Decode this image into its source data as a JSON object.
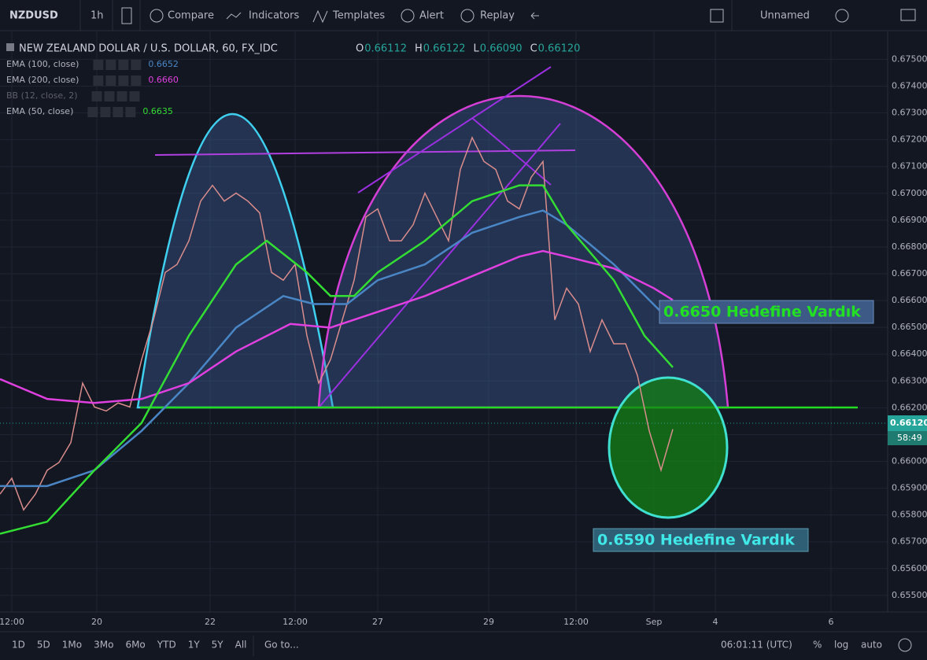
{
  "toolbar": {
    "symbol": "NZDUSD",
    "interval": "1h",
    "items": [
      "Compare",
      "Indicators",
      "Templates",
      "Alert",
      "Replay"
    ],
    "layout_name": "Unnamed"
  },
  "legend": {
    "title": "NEW ZEALAND DOLLAR / U.S. DOLLAR, 60, FX_IDC",
    "ohlc": [
      {
        "label": "O",
        "value": "0.66112"
      },
      {
        "label": "H",
        "value": "0.66122"
      },
      {
        "label": "L",
        "value": "0.66090"
      },
      {
        "label": "C",
        "value": "0.66120"
      }
    ],
    "indicators": [
      {
        "name": "EMA (100, close)",
        "value": "0.6652",
        "color": "#4a86c5"
      },
      {
        "name": "EMA (200, close)",
        "value": "0.6660",
        "color": "#e040e0"
      },
      {
        "name": "BB (12, close, 2)",
        "value": null,
        "color": "#787b86"
      },
      {
        "name": "EMA (50, close)",
        "value": "0.6635",
        "color": "#33dd33"
      }
    ]
  },
  "chart_data": {
    "type": "line",
    "xlim": [
      0,
      376
    ],
    "xticks": [
      {
        "value": 5,
        "label": "12:00"
      },
      {
        "value": 41,
        "label": "20"
      },
      {
        "value": 89,
        "label": "22"
      },
      {
        "value": 125,
        "label": "12:00"
      },
      {
        "value": 160,
        "label": "27"
      },
      {
        "value": 207,
        "label": "29"
      },
      {
        "value": 244,
        "label": "12:00"
      },
      {
        "value": 277,
        "label": "Sep"
      },
      {
        "value": 303,
        "label": "4"
      },
      {
        "value": 352,
        "label": "6"
      }
    ],
    "ylim": [
      0.65438,
      0.67604
    ],
    "yticks": [
      {
        "value": 0.655,
        "label": "0.65500"
      },
      {
        "value": 0.656,
        "label": "0.65600"
      },
      {
        "value": 0.657,
        "label": "0.65700"
      },
      {
        "value": 0.658,
        "label": "0.65800"
      },
      {
        "value": 0.659,
        "label": "0.65900"
      },
      {
        "value": 0.66,
        "label": "0.66000"
      },
      {
        "value": 0.661,
        "label": "0.66100"
      },
      {
        "value": 0.662,
        "label": "0.66200"
      },
      {
        "value": 0.663,
        "label": "0.66300"
      },
      {
        "value": 0.664,
        "label": "0.66400"
      },
      {
        "value": 0.665,
        "label": "0.66500"
      },
      {
        "value": 0.666,
        "label": "0.66600"
      },
      {
        "value": 0.667,
        "label": "0.66700"
      },
      {
        "value": 0.668,
        "label": "0.66800"
      },
      {
        "value": 0.669,
        "label": "0.66900"
      },
      {
        "value": 0.67,
        "label": "0.67000"
      },
      {
        "value": 0.671,
        "label": "0.67100"
      },
      {
        "value": 0.672,
        "label": "0.67200"
      },
      {
        "value": 0.673,
        "label": "0.67300"
      },
      {
        "value": 0.674,
        "label": "0.67400"
      },
      {
        "value": 0.675,
        "label": "0.67500"
      }
    ],
    "grid": true,
    "series": [
      {
        "color": "#d98c8c",
        "x": [
          0,
          5,
          10,
          15,
          20,
          25,
          30,
          35,
          40,
          45,
          50,
          55,
          60,
          65,
          70,
          75,
          80,
          85,
          90,
          95,
          100,
          105,
          110,
          115,
          120,
          125,
          130,
          135,
          140,
          145,
          150,
          155,
          160,
          165,
          170,
          175,
          180,
          185,
          190,
          195,
          200,
          205,
          210,
          215,
          220,
          225,
          230,
          235,
          240,
          245,
          250,
          255,
          260,
          265,
          270,
          275,
          280,
          285
        ],
        "values": [
          0.65878,
          0.65937,
          0.65819,
          0.65878,
          0.65967,
          0.65996,
          0.6607,
          0.66292,
          0.66203,
          0.66188,
          0.66218,
          0.66203,
          0.6638,
          0.66528,
          0.66705,
          0.66735,
          0.66823,
          0.66971,
          0.6703,
          0.66971,
          0.67001,
          0.66971,
          0.66927,
          0.66705,
          0.66676,
          0.66735,
          0.66469,
          0.66292,
          0.6638,
          0.66528,
          0.66676,
          0.66912,
          0.66942,
          0.66823,
          0.66823,
          0.66883,
          0.67001,
          0.66912,
          0.66823,
          0.67089,
          0.67208,
          0.67119,
          0.67089,
          0.66971,
          0.66942,
          0.6706,
          0.67119,
          0.66528,
          0.66646,
          0.66587,
          0.6641,
          0.66528,
          0.66439,
          0.66439,
          0.66321,
          0.66114,
          0.65967,
          0.6612
        ]
      },
      {
        "name": "EMA (100, close)",
        "color": "#4a86c5",
        "x": [
          0,
          20,
          40,
          60,
          80,
          100,
          120,
          133,
          147,
          160,
          180,
          200,
          220,
          230,
          240,
          260,
          280,
          285
        ],
        "values": [
          0.65908,
          0.65908,
          0.65967,
          0.66114,
          0.66292,
          0.66499,
          0.66617,
          0.66587,
          0.66587,
          0.66676,
          0.66735,
          0.66853,
          0.66912,
          0.66936,
          0.66883,
          0.66735,
          0.66558,
          0.66528
        ]
      },
      {
        "name": "EMA (200, close)",
        "color": "#e040e0",
        "x": [
          0,
          20,
          40,
          60,
          80,
          100,
          123,
          140,
          160,
          180,
          200,
          220,
          230,
          240,
          260,
          277,
          285
        ],
        "values": [
          0.66307,
          0.66233,
          0.66218,
          0.66233,
          0.66292,
          0.6641,
          0.66513,
          0.66499,
          0.66558,
          0.66617,
          0.66691,
          0.66764,
          0.66785,
          0.66764,
          0.6672,
          0.66646,
          0.66602
        ]
      },
      {
        "name": "EMA (50, close)",
        "color": "#33dd33",
        "x": [
          0,
          20,
          40,
          60,
          80,
          100,
          113,
          130,
          140,
          150,
          160,
          180,
          200,
          220,
          230,
          240,
          260,
          273,
          285
        ],
        "values": [
          0.6573,
          0.65775,
          0.65967,
          0.66144,
          0.66469,
          0.66735,
          0.66823,
          0.66705,
          0.66617,
          0.66617,
          0.66705,
          0.66823,
          0.66971,
          0.6703,
          0.6703,
          0.66883,
          0.66676,
          0.66469,
          0.66351
        ]
      }
    ],
    "annotations": [
      "0.6650 Hedefine Vardık",
      "0.6590 Hedefine Vardık"
    ],
    "price_tag": "0.66120",
    "countdown": "58:49"
  },
  "bottom_bar": {
    "ranges": [
      "1D",
      "5D",
      "1Mo",
      "3Mo",
      "6Mo",
      "YTD",
      "1Y",
      "5Y",
      "All"
    ],
    "goto": "Go to...",
    "clock": "06:01:11 (UTC)",
    "options": [
      "%",
      "log",
      "auto"
    ]
  }
}
